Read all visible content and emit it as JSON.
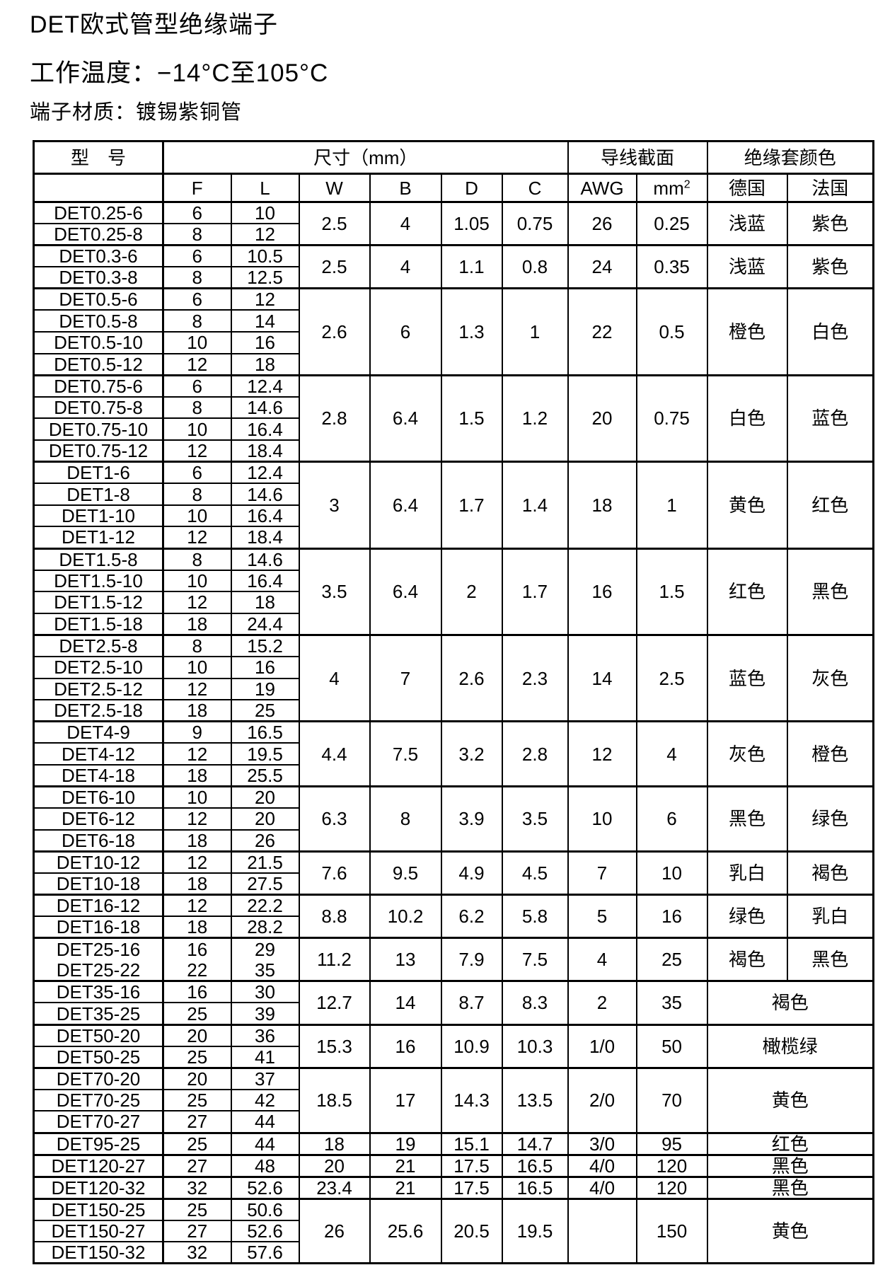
{
  "page": {
    "title": "DET欧式管型绝缘端子",
    "subtitle": "工作温度：−14°C至105°C",
    "material": "端子材质：镀锡紫铜管"
  },
  "table": {
    "header": {
      "model": "型　号",
      "size": "尺寸（mm）",
      "wire": "导线截面",
      "color": "绝缘套颜色",
      "f": "F",
      "l": "L",
      "w": "W",
      "b": "B",
      "d": "D",
      "c": "C",
      "awg": "AWG",
      "mm2_base": "mm",
      "mm2_sup": "2",
      "germany": "德国",
      "france": "法国"
    },
    "groups": [
      {
        "models": [
          {
            "name": "DET0.25-6",
            "f": "6",
            "l": "10"
          },
          {
            "name": "DET0.25-8",
            "f": "8",
            "l": "12"
          }
        ],
        "w": "2.5",
        "b": "4",
        "d": "1.05",
        "c": "0.75",
        "awg": "26",
        "mm2": "0.25",
        "de": "浅蓝",
        "fr": "紫色"
      },
      {
        "models": [
          {
            "name": "DET0.3-6",
            "f": "6",
            "l": "10.5"
          },
          {
            "name": "DET0.3-8",
            "f": "8",
            "l": "12.5"
          }
        ],
        "w": "2.5",
        "b": "4",
        "d": "1.1",
        "c": "0.8",
        "awg": "24",
        "mm2": "0.35",
        "de": "浅蓝",
        "fr": "紫色"
      },
      {
        "models": [
          {
            "name": "DET0.5-6",
            "f": "6",
            "l": "12"
          },
          {
            "name": "DET0.5-8",
            "f": "8",
            "l": "14"
          },
          {
            "name": "DET0.5-10",
            "f": "10",
            "l": "16"
          },
          {
            "name": "DET0.5-12",
            "f": "12",
            "l": "18"
          }
        ],
        "w": "2.6",
        "b": "6",
        "d": "1.3",
        "c": "1",
        "awg": "22",
        "mm2": "0.5",
        "de": "橙色",
        "fr": "白色"
      },
      {
        "models": [
          {
            "name": "DET0.75-6",
            "f": "6",
            "l": "12.4"
          },
          {
            "name": "DET0.75-8",
            "f": "8",
            "l": "14.6"
          },
          {
            "name": "DET0.75-10",
            "f": "10",
            "l": "16.4"
          },
          {
            "name": "DET0.75-12",
            "f": "12",
            "l": "18.4"
          }
        ],
        "w": "2.8",
        "b": "6.4",
        "d": "1.5",
        "c": "1.2",
        "awg": "20",
        "mm2": "0.75",
        "de": "白色",
        "fr": "蓝色"
      },
      {
        "models": [
          {
            "name": "DET1-6",
            "f": "6",
            "l": "12.4"
          },
          {
            "name": "DET1-8",
            "f": "8",
            "l": "14.6"
          },
          {
            "name": "DET1-10",
            "f": "10",
            "l": "16.4"
          },
          {
            "name": "DET1-12",
            "f": "12",
            "l": "18.4"
          }
        ],
        "w": "3",
        "b": "6.4",
        "d": "1.7",
        "c": "1.4",
        "awg": "18",
        "mm2": "1",
        "de": "黄色",
        "fr": "红色"
      },
      {
        "models": [
          {
            "name": "DET1.5-8",
            "f": "8",
            "l": "14.6"
          },
          {
            "name": "DET1.5-10",
            "f": "10",
            "l": "16.4"
          },
          {
            "name": "DET1.5-12",
            "f": "12",
            "l": "18"
          },
          {
            "name": "DET1.5-18",
            "f": "18",
            "l": "24.4"
          }
        ],
        "w": "3.5",
        "b": "6.4",
        "d": "2",
        "c": "1.7",
        "awg": "16",
        "mm2": "1.5",
        "de": "红色",
        "fr": "黑色"
      },
      {
        "models": [
          {
            "name": "DET2.5-8",
            "f": "8",
            "l": "15.2"
          },
          {
            "name": "DET2.5-10",
            "f": "10",
            "l": "16"
          },
          {
            "name": "DET2.5-12",
            "f": "12",
            "l": "19"
          },
          {
            "name": "DET2.5-18",
            "f": "18",
            "l": "25"
          }
        ],
        "w": "4",
        "b": "7",
        "d": "2.6",
        "c": "2.3",
        "awg": "14",
        "mm2": "2.5",
        "de": "蓝色",
        "fr": "灰色"
      },
      {
        "models": [
          {
            "name": "DET4-9",
            "f": "9",
            "l": "16.5"
          },
          {
            "name": "DET4-12",
            "f": "12",
            "l": "19.5"
          },
          {
            "name": "DET4-18",
            "f": "18",
            "l": "25.5"
          }
        ],
        "w": "4.4",
        "b": "7.5",
        "d": "3.2",
        "c": "2.8",
        "awg": "12",
        "mm2": "4",
        "de": "灰色",
        "fr": "橙色"
      },
      {
        "models": [
          {
            "name": "DET6-10",
            "f": "10",
            "l": "20"
          },
          {
            "name": "DET6-12",
            "f": "12",
            "l": "20"
          },
          {
            "name": "DET6-18",
            "f": "18",
            "l": "26"
          }
        ],
        "w": "6.3",
        "b": "8",
        "d": "3.9",
        "c": "3.5",
        "awg": "10",
        "mm2": "6",
        "de": "黑色",
        "fr": "绿色"
      },
      {
        "models": [
          {
            "name": "DET10-12",
            "f": "12",
            "l": "21.5"
          },
          {
            "name": "DET10-18",
            "f": "18",
            "l": "27.5"
          }
        ],
        "w": "7.6",
        "b": "9.5",
        "d": "4.9",
        "c": "4.5",
        "awg": "7",
        "mm2": "10",
        "de": "乳白",
        "fr": "褐色"
      },
      {
        "models": [
          {
            "name": "DET16-12",
            "f": "12",
            "l": "22.2"
          },
          {
            "name": "DET16-18",
            "f": "18",
            "l": "28.2"
          }
        ],
        "w": "8.8",
        "b": "10.2",
        "d": "6.2",
        "c": "5.8",
        "awg": "5",
        "mm2": "16",
        "de": "绿色",
        "fr": "乳白"
      },
      {
        "models": [
          {
            "name": "DET25-16",
            "f": "16",
            "l": "29"
          },
          {
            "name": "DET25-22",
            "f": "22",
            "l": "35"
          }
        ],
        "merge_models": true,
        "w": "11.2",
        "b": "13",
        "d": "7.9",
        "c": "7.5",
        "awg": "4",
        "mm2": "25",
        "de": "褐色",
        "fr": "黑色"
      },
      {
        "models": [
          {
            "name": "DET35-16",
            "f": "16",
            "l": "30"
          },
          {
            "name": "DET35-25",
            "f": "25",
            "l": "39"
          }
        ],
        "w": "12.7",
        "b": "14",
        "d": "8.7",
        "c": "8.3",
        "awg": "2",
        "mm2": "35",
        "color": "褐色"
      },
      {
        "models": [
          {
            "name": "DET50-20",
            "f": "20",
            "l": "36"
          },
          {
            "name": "DET50-25",
            "f": "25",
            "l": "41"
          }
        ],
        "w": "15.3",
        "b": "16",
        "d": "10.9",
        "c": "10.3",
        "awg": "1/0",
        "mm2": "50",
        "color": "橄榄绿"
      },
      {
        "models": [
          {
            "name": "DET70-20",
            "f": "20",
            "l": "37"
          },
          {
            "name": "DET70-25",
            "f": "25",
            "l": "42"
          },
          {
            "name": "DET70-27",
            "f": "27",
            "l": "44"
          }
        ],
        "w": "18.5",
        "b": "17",
        "d": "14.3",
        "c": "13.5",
        "awg": "2/0",
        "mm2": "70",
        "color": "黄色"
      },
      {
        "models": [
          {
            "name": "DET95-25",
            "f": "25",
            "l": "44"
          }
        ],
        "w": "18",
        "b": "19",
        "d": "15.1",
        "c": "14.7",
        "awg": "3/0",
        "mm2": "95",
        "color": "红色"
      },
      {
        "models": [
          {
            "name": "DET120-27",
            "f": "27",
            "l": "48"
          }
        ],
        "w": "20",
        "b": "21",
        "d": "17.5",
        "c": "16.5",
        "awg": "4/0",
        "mm2": "120",
        "color": "黑色"
      },
      {
        "models": [
          {
            "name": "DET120-32",
            "f": "32",
            "l": "52.6"
          }
        ],
        "w": "23.4",
        "b": "21",
        "d": "17.5",
        "c": "16.5",
        "awg": "4/0",
        "mm2": "120",
        "color": "黑色"
      },
      {
        "models": [
          {
            "name": "DET150-25",
            "f": "25",
            "l": "50.6"
          },
          {
            "name": "DET150-27",
            "f": "27",
            "l": "52.6"
          },
          {
            "name": "DET150-32",
            "f": "32",
            "l": "57.6"
          }
        ],
        "w": "26",
        "b": "25.6",
        "d": "20.5",
        "c": "19.5",
        "awg": "",
        "mm2": "150",
        "color": "黄色"
      }
    ]
  }
}
